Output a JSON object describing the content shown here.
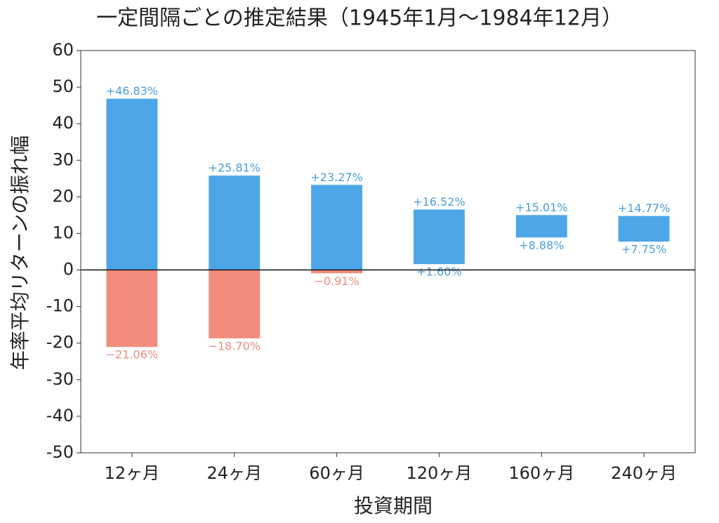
{
  "chart_data": {
    "type": "range_bar",
    "title": "一定間隔ごとの推定結果（1945年1月～1984年12月）",
    "x_label": "投資期間",
    "y_label": "年率平均リターンの振れ幅",
    "categories": [
      "12ヶ月",
      "24ヶ月",
      "60ヶ月",
      "120ヶ月",
      "160ヶ月",
      "240ヶ月"
    ],
    "high": {
      "values": [
        46.83,
        25.81,
        23.27,
        16.52,
        15.01,
        14.77
      ],
      "value_labels": [
        "+46.83%",
        "+25.81%",
        "+23.27%",
        "+16.52%",
        "+15.01%",
        "+14.77%"
      ]
    },
    "low": {
      "values": [
        -21.06,
        -18.7,
        -0.91,
        1.6,
        8.88,
        7.75
      ],
      "value_labels": [
        "−21.06%",
        "−18.70%",
        "−0.91%",
        "+1.60%",
        "+8.88%",
        "+7.75%"
      ]
    },
    "positive_color": "#4da6e8",
    "negative_color": "#f28c7c",
    "ylim": [
      -50,
      60
    ],
    "yticks": [
      -50,
      -40,
      -30,
      -20,
      -10,
      0,
      10,
      20,
      30,
      40,
      50,
      60
    ],
    "zero_line": true
  }
}
